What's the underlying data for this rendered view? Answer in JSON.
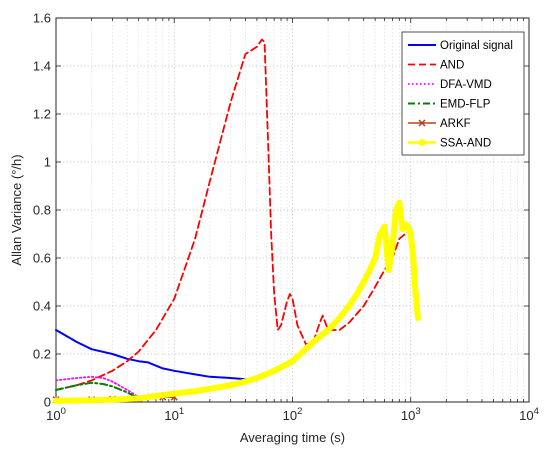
{
  "chart_data": {
    "type": "line",
    "title": "",
    "xlabel": "Averaging time (s)",
    "ylabel": "Allan Variance (°/h)",
    "xscale": "log",
    "xlim": [
      1,
      10000
    ],
    "ylim": [
      0,
      1.6
    ],
    "grid": true,
    "legend_position": "top-right",
    "x_ticks": [
      {
        "value": 1,
        "base": "10",
        "exp": "0"
      },
      {
        "value": 10,
        "base": "10",
        "exp": "1"
      },
      {
        "value": 100,
        "base": "10",
        "exp": "2"
      },
      {
        "value": 1000,
        "base": "10",
        "exp": "3"
      },
      {
        "value": 10000,
        "base": "10",
        "exp": "4"
      }
    ],
    "y_ticks": [
      {
        "value": 0,
        "label": "0"
      },
      {
        "value": 0.2,
        "label": "0.2"
      },
      {
        "value": 0.4,
        "label": "0.4"
      },
      {
        "value": 0.6,
        "label": "0.6"
      },
      {
        "value": 0.8,
        "label": "0.8"
      },
      {
        "value": 1.0,
        "label": "1"
      },
      {
        "value": 1.2,
        "label": "1.2"
      },
      {
        "value": 1.4,
        "label": "1.4"
      },
      {
        "value": 1.6,
        "label": "1.6"
      }
    ],
    "series": [
      {
        "name": "Original signal",
        "color": "#0000ff",
        "style": "solid",
        "width": 2,
        "x": [
          1,
          1.5,
          2,
          3,
          4,
          5,
          6,
          8,
          10,
          15,
          20,
          30,
          40,
          50
        ],
        "y": [
          0.3,
          0.25,
          0.22,
          0.2,
          0.18,
          0.17,
          0.165,
          0.14,
          0.13,
          0.115,
          0.105,
          0.1,
          0.095,
          0.09
        ]
      },
      {
        "name": "AND",
        "color": "#ff0000",
        "style": "dashed",
        "width": 1.8,
        "x": [
          1,
          1.5,
          2,
          3,
          4,
          5,
          7,
          10,
          15,
          20,
          30,
          40,
          50,
          55,
          58,
          62,
          66,
          70,
          75,
          80,
          90,
          95,
          100,
          110,
          130,
          150,
          170,
          180,
          200,
          250,
          300,
          400,
          500,
          600,
          700,
          800,
          1000
        ],
        "y": [
          0.05,
          0.07,
          0.09,
          0.13,
          0.17,
          0.21,
          0.3,
          0.43,
          0.68,
          0.92,
          1.25,
          1.45,
          1.48,
          1.51,
          1.5,
          1.1,
          0.7,
          0.45,
          0.3,
          0.32,
          0.42,
          0.45,
          0.43,
          0.32,
          0.24,
          0.25,
          0.33,
          0.36,
          0.3,
          0.3,
          0.33,
          0.4,
          0.48,
          0.55,
          0.6,
          0.68,
          0.72
        ]
      },
      {
        "name": "DFA-VMD",
        "color": "#ff00ff",
        "style": "dotted",
        "width": 1.8,
        "x": [
          1,
          1.5,
          2,
          2.5,
          3,
          4,
          5,
          6
        ],
        "y": [
          0.09,
          0.1,
          0.105,
          0.1,
          0.085,
          0.05,
          0.02,
          0.01
        ]
      },
      {
        "name": "EMD-FLP",
        "color": "#008000",
        "style": "dashdot",
        "width": 2,
        "x": [
          1,
          1.5,
          2,
          2.5,
          3,
          4,
          5
        ],
        "y": [
          0.05,
          0.07,
          0.08,
          0.075,
          0.065,
          0.04,
          0.015
        ]
      },
      {
        "name": "ARKF",
        "color": "#b8401a",
        "style": "solid",
        "marker": "x",
        "width": 1.5,
        "x": [
          1,
          2,
          3,
          5,
          8,
          10
        ],
        "y": [
          0.01,
          0.01,
          0.012,
          0.015,
          0.02,
          0.02
        ]
      },
      {
        "name": "SSA-AND",
        "color": "#ffff00",
        "style": "solid",
        "marker": "circle",
        "width": 6,
        "x": [
          1,
          2,
          3,
          5,
          7,
          10,
          15,
          20,
          30,
          40,
          50,
          70,
          100,
          150,
          200,
          250,
          300,
          350,
          400,
          450,
          500,
          550,
          600,
          650,
          700,
          750,
          800,
          850,
          900,
          950,
          1000,
          1050,
          1100,
          1150
        ],
        "y": [
          0.005,
          0.007,
          0.01,
          0.015,
          0.025,
          0.035,
          0.045,
          0.055,
          0.07,
          0.085,
          0.1,
          0.13,
          0.17,
          0.25,
          0.3,
          0.35,
          0.4,
          0.45,
          0.5,
          0.55,
          0.6,
          0.7,
          0.73,
          0.55,
          0.65,
          0.8,
          0.83,
          0.72,
          0.74,
          0.73,
          0.7,
          0.6,
          0.45,
          0.35
        ]
      }
    ]
  }
}
